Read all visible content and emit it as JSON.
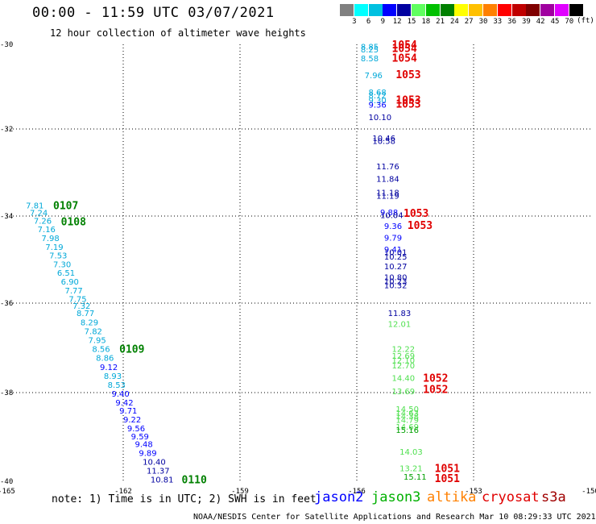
{
  "header": {
    "title": "00:00 - 11:59 UTC 03/07/2021",
    "subtitle": "12 hour collection of altimeter wave heights"
  },
  "colorscale": {
    "ticks": [
      "3",
      "6",
      "9",
      "12",
      "15",
      "18",
      "21",
      "24",
      "27",
      "30",
      "33",
      "36",
      "39",
      "42",
      "45",
      "70"
    ],
    "unit": "(ft)",
    "colors": [
      "#808080",
      "#00ffff",
      "#00c0e0",
      "#0000ff",
      "#0000a0",
      "#60ff60",
      "#00c000",
      "#008000",
      "#ffff00",
      "#ffc000",
      "#ff8000",
      "#ff0000",
      "#c00000",
      "#800000",
      "#a000a0",
      "#e000ff",
      "#000000"
    ]
  },
  "footer": {
    "note": "note: 1) Time is in UTC; 2) SWH is in feet",
    "credit": "NOAA/NESDIS Center for Satellite Applications and Research   Mar 10 08:29:33 UTC 2021"
  },
  "satellites": [
    {
      "name": "jason2",
      "color": "#0000ff"
    },
    {
      "name": "jason3",
      "color": "#00b000"
    },
    {
      "name": "altika",
      "color": "#ff8000"
    },
    {
      "name": "cryosat",
      "color": "#e00000"
    },
    {
      "name": "s3a",
      "color": "#a00000"
    }
  ],
  "chart_data": {
    "type": "scatter",
    "title": "",
    "xlabel": "",
    "ylabel": "",
    "xlim": [
      -165,
      -150
    ],
    "ylim": [
      -40,
      -30
    ],
    "xticks": [
      "-165",
      "-162",
      "-159",
      "-156",
      "-153",
      "-150"
    ],
    "yticks": [
      "-30",
      "-32",
      "-34",
      "-36",
      "-38",
      "-40"
    ],
    "ytick_values": [
      -30,
      -32,
      -34,
      -36,
      -38,
      -40
    ],
    "grid": true,
    "points": [
      {
        "x": -155.9,
        "y": -30.05,
        "v": "8.85",
        "c": "#00a8d8"
      },
      {
        "x": -155.9,
        "y": -30.11,
        "v": "8.25",
        "c": "#00a8d8"
      },
      {
        "x": -155.9,
        "y": -30.32,
        "v": "8.58",
        "c": "#00a8d8"
      },
      {
        "x": -155.8,
        "y": -30.72,
        "v": "7.96",
        "c": "#00a8d8"
      },
      {
        "x": -155.7,
        "y": -31.12,
        "v": "8.68",
        "c": "#00a8d8"
      },
      {
        "x": -155.7,
        "y": -31.2,
        "v": "8.72",
        "c": "#00a8d8"
      },
      {
        "x": -155.7,
        "y": -31.31,
        "v": "9.30",
        "c": "#00a8d8"
      },
      {
        "x": -155.7,
        "y": -31.42,
        "v": "9.36",
        "c": "#0000ff"
      },
      {
        "x": -155.7,
        "y": -31.71,
        "v": "10.10",
        "c": "#0000a0"
      },
      {
        "x": -155.6,
        "y": -32.2,
        "v": "10.46",
        "c": "#0000a0"
      },
      {
        "x": -155.6,
        "y": -32.27,
        "v": "10.58",
        "c": "#0000a0"
      },
      {
        "x": -155.5,
        "y": -32.85,
        "v": "11.76",
        "c": "#0000a0"
      },
      {
        "x": -155.5,
        "y": -33.14,
        "v": "11.84",
        "c": "#0000a0"
      },
      {
        "x": -155.5,
        "y": -33.45,
        "v": "11.18",
        "c": "#0000a0"
      },
      {
        "x": -155.5,
        "y": -33.53,
        "v": "11.19",
        "c": "#0000a0"
      },
      {
        "x": -155.4,
        "y": -33.91,
        "v": "9.88",
        "c": "#0000ff"
      },
      {
        "x": -155.4,
        "y": -33.97,
        "v": "10.04",
        "c": "#0000a0"
      },
      {
        "x": -155.3,
        "y": -34.22,
        "v": "9.36",
        "c": "#0000ff"
      },
      {
        "x": -155.3,
        "y": -34.49,
        "v": "9.79",
        "c": "#0000ff"
      },
      {
        "x": -155.3,
        "y": -34.76,
        "v": "9.41",
        "c": "#0000ff"
      },
      {
        "x": -155.3,
        "y": -34.82,
        "v": "10.01",
        "c": "#0000a0"
      },
      {
        "x": -155.3,
        "y": -34.93,
        "v": "10.25",
        "c": "#0000a0"
      },
      {
        "x": -155.3,
        "y": -35.15,
        "v": "10.27",
        "c": "#0000a0"
      },
      {
        "x": -155.3,
        "y": -35.4,
        "v": "10.80",
        "c": "#0000a0"
      },
      {
        "x": -155.3,
        "y": -35.49,
        "v": "10.23",
        "c": "#0000a0"
      },
      {
        "x": -155.3,
        "y": -35.58,
        "v": "10.32",
        "c": "#0000a0"
      },
      {
        "x": -155.2,
        "y": -36.22,
        "v": "11.83",
        "c": "#0000a0"
      },
      {
        "x": -155.2,
        "y": -36.46,
        "v": "12.01",
        "c": "#50e050"
      },
      {
        "x": -155.1,
        "y": -37.02,
        "v": "12.22",
        "c": "#50e050"
      },
      {
        "x": -155.1,
        "y": -37.17,
        "v": "12.69",
        "c": "#50e050"
      },
      {
        "x": -155.1,
        "y": -37.27,
        "v": "12.10",
        "c": "#50e050"
      },
      {
        "x": -155.1,
        "y": -37.39,
        "v": "12.70",
        "c": "#50e050"
      },
      {
        "x": -155.1,
        "y": -37.67,
        "v": "14.40",
        "c": "#50e050"
      },
      {
        "x": -155.1,
        "y": -37.96,
        "v": "13.69",
        "c": "#50e050"
      },
      {
        "x": -155.0,
        "y": -38.36,
        "v": "14.50",
        "c": "#50e050"
      },
      {
        "x": -155.0,
        "y": -38.45,
        "v": "14.63",
        "c": "#50e050"
      },
      {
        "x": -155.0,
        "y": -38.53,
        "v": "14.38",
        "c": "#50e050"
      },
      {
        "x": -155.0,
        "y": -38.61,
        "v": "14.79",
        "c": "#50e050"
      },
      {
        "x": -155.0,
        "y": -38.76,
        "v": "14.69",
        "c": "#50e050"
      },
      {
        "x": -155.0,
        "y": -38.84,
        "v": "15.16",
        "c": "#00a000"
      },
      {
        "x": -154.9,
        "y": -39.33,
        "v": "14.03",
        "c": "#50e050"
      },
      {
        "x": -154.9,
        "y": -39.7,
        "v": "13.21",
        "c": "#50e050"
      },
      {
        "x": -154.8,
        "y": -39.89,
        "v": "15.11",
        "c": "#00a000"
      },
      {
        "x": -164.5,
        "y": -33.75,
        "v": "7.81",
        "c": "#00a8d8"
      },
      {
        "x": -164.4,
        "y": -33.92,
        "v": "7.24",
        "c": "#00a8d8"
      },
      {
        "x": -164.3,
        "y": -34.1,
        "v": "7.26",
        "c": "#00a8d8"
      },
      {
        "x": -164.2,
        "y": -34.3,
        "v": "7.16",
        "c": "#00a8d8"
      },
      {
        "x": -164.1,
        "y": -34.5,
        "v": "7.98",
        "c": "#00a8d8"
      },
      {
        "x": -164.0,
        "y": -34.7,
        "v": "7.19",
        "c": "#00a8d8"
      },
      {
        "x": -163.9,
        "y": -34.9,
        "v": "7.53",
        "c": "#00a8d8"
      },
      {
        "x": -163.8,
        "y": -35.1,
        "v": "7.30",
        "c": "#00a8d8"
      },
      {
        "x": -163.7,
        "y": -35.3,
        "v": "6.51",
        "c": "#00a8d8"
      },
      {
        "x": -163.6,
        "y": -35.5,
        "v": "6.90",
        "c": "#00a8d8"
      },
      {
        "x": -163.5,
        "y": -35.7,
        "v": "7.77",
        "c": "#00a8d8"
      },
      {
        "x": -163.4,
        "y": -35.9,
        "v": "7.75",
        "c": "#00a8d8"
      },
      {
        "x": -163.3,
        "y": -36.05,
        "v": "7.32",
        "c": "#00a8d8"
      },
      {
        "x": -163.2,
        "y": -36.22,
        "v": "8.77",
        "c": "#00a8d8"
      },
      {
        "x": -163.1,
        "y": -36.42,
        "v": "8.29",
        "c": "#00a8d8"
      },
      {
        "x": -163.0,
        "y": -36.62,
        "v": "7.82",
        "c": "#00a8d8"
      },
      {
        "x": -162.9,
        "y": -36.82,
        "v": "7.95",
        "c": "#00a8d8"
      },
      {
        "x": -162.8,
        "y": -37.02,
        "v": "8.56",
        "c": "#00a8d8"
      },
      {
        "x": -162.7,
        "y": -37.22,
        "v": "8.86",
        "c": "#00a8d8"
      },
      {
        "x": -162.6,
        "y": -37.42,
        "v": "9.12",
        "c": "#0000ff"
      },
      {
        "x": -162.5,
        "y": -37.62,
        "v": "8.93",
        "c": "#00a8d8"
      },
      {
        "x": -162.4,
        "y": -37.82,
        "v": "8.53",
        "c": "#00a8d8"
      },
      {
        "x": -162.3,
        "y": -38.02,
        "v": "9.40",
        "c": "#0000ff"
      },
      {
        "x": -162.2,
        "y": -38.22,
        "v": "9.42",
        "c": "#0000ff"
      },
      {
        "x": -162.1,
        "y": -38.4,
        "v": "9.71",
        "c": "#0000ff"
      },
      {
        "x": -162.0,
        "y": -38.6,
        "v": "9.22",
        "c": "#0000ff"
      },
      {
        "x": -161.9,
        "y": -38.8,
        "v": "9.56",
        "c": "#0000ff"
      },
      {
        "x": -161.8,
        "y": -38.98,
        "v": "9.59",
        "c": "#0000ff"
      },
      {
        "x": -161.7,
        "y": -39.15,
        "v": "9.48",
        "c": "#0000ff"
      },
      {
        "x": -161.6,
        "y": -39.35,
        "v": "9.89",
        "c": "#0000ff"
      },
      {
        "x": -161.5,
        "y": -39.55,
        "v": "10.40",
        "c": "#0000a0"
      },
      {
        "x": -161.4,
        "y": -39.75,
        "v": "11.37",
        "c": "#0000a0"
      },
      {
        "x": -161.3,
        "y": -39.95,
        "v": "10.81",
        "c": "#0000a0"
      }
    ],
    "time_labels": [
      {
        "x": -155.1,
        "y": -30.0,
        "v": "1054",
        "c": "#e00000"
      },
      {
        "x": -155.1,
        "y": -30.09,
        "v": "1054",
        "c": "#e00000"
      },
      {
        "x": -155.1,
        "y": -30.31,
        "v": "1054",
        "c": "#e00000"
      },
      {
        "x": -155.0,
        "y": -30.7,
        "v": "1053",
        "c": "#e00000"
      },
      {
        "x": -155.0,
        "y": -31.3,
        "v": "1053",
        "c": "#e00000"
      },
      {
        "x": -155.0,
        "y": -31.4,
        "v": "1053",
        "c": "#e00000"
      },
      {
        "x": -154.8,
        "y": -33.93,
        "v": "1053",
        "c": "#e00000"
      },
      {
        "x": -154.7,
        "y": -34.2,
        "v": "1053",
        "c": "#e00000"
      },
      {
        "x": -154.3,
        "y": -37.67,
        "v": "1052",
        "c": "#e00000"
      },
      {
        "x": -154.3,
        "y": -37.92,
        "v": "1052",
        "c": "#e00000"
      },
      {
        "x": -154.0,
        "y": -39.7,
        "v": "1051",
        "c": "#e00000"
      },
      {
        "x": -154.0,
        "y": -39.93,
        "v": "1051",
        "c": "#e00000"
      },
      {
        "x": -163.8,
        "y": -33.75,
        "v": "0107",
        "c": "#008000"
      },
      {
        "x": -163.6,
        "y": -34.12,
        "v": "0108",
        "c": "#008000"
      },
      {
        "x": -162.1,
        "y": -37.02,
        "v": "0109",
        "c": "#008000"
      },
      {
        "x": -160.5,
        "y": -39.95,
        "v": "0110",
        "c": "#008000"
      }
    ]
  }
}
